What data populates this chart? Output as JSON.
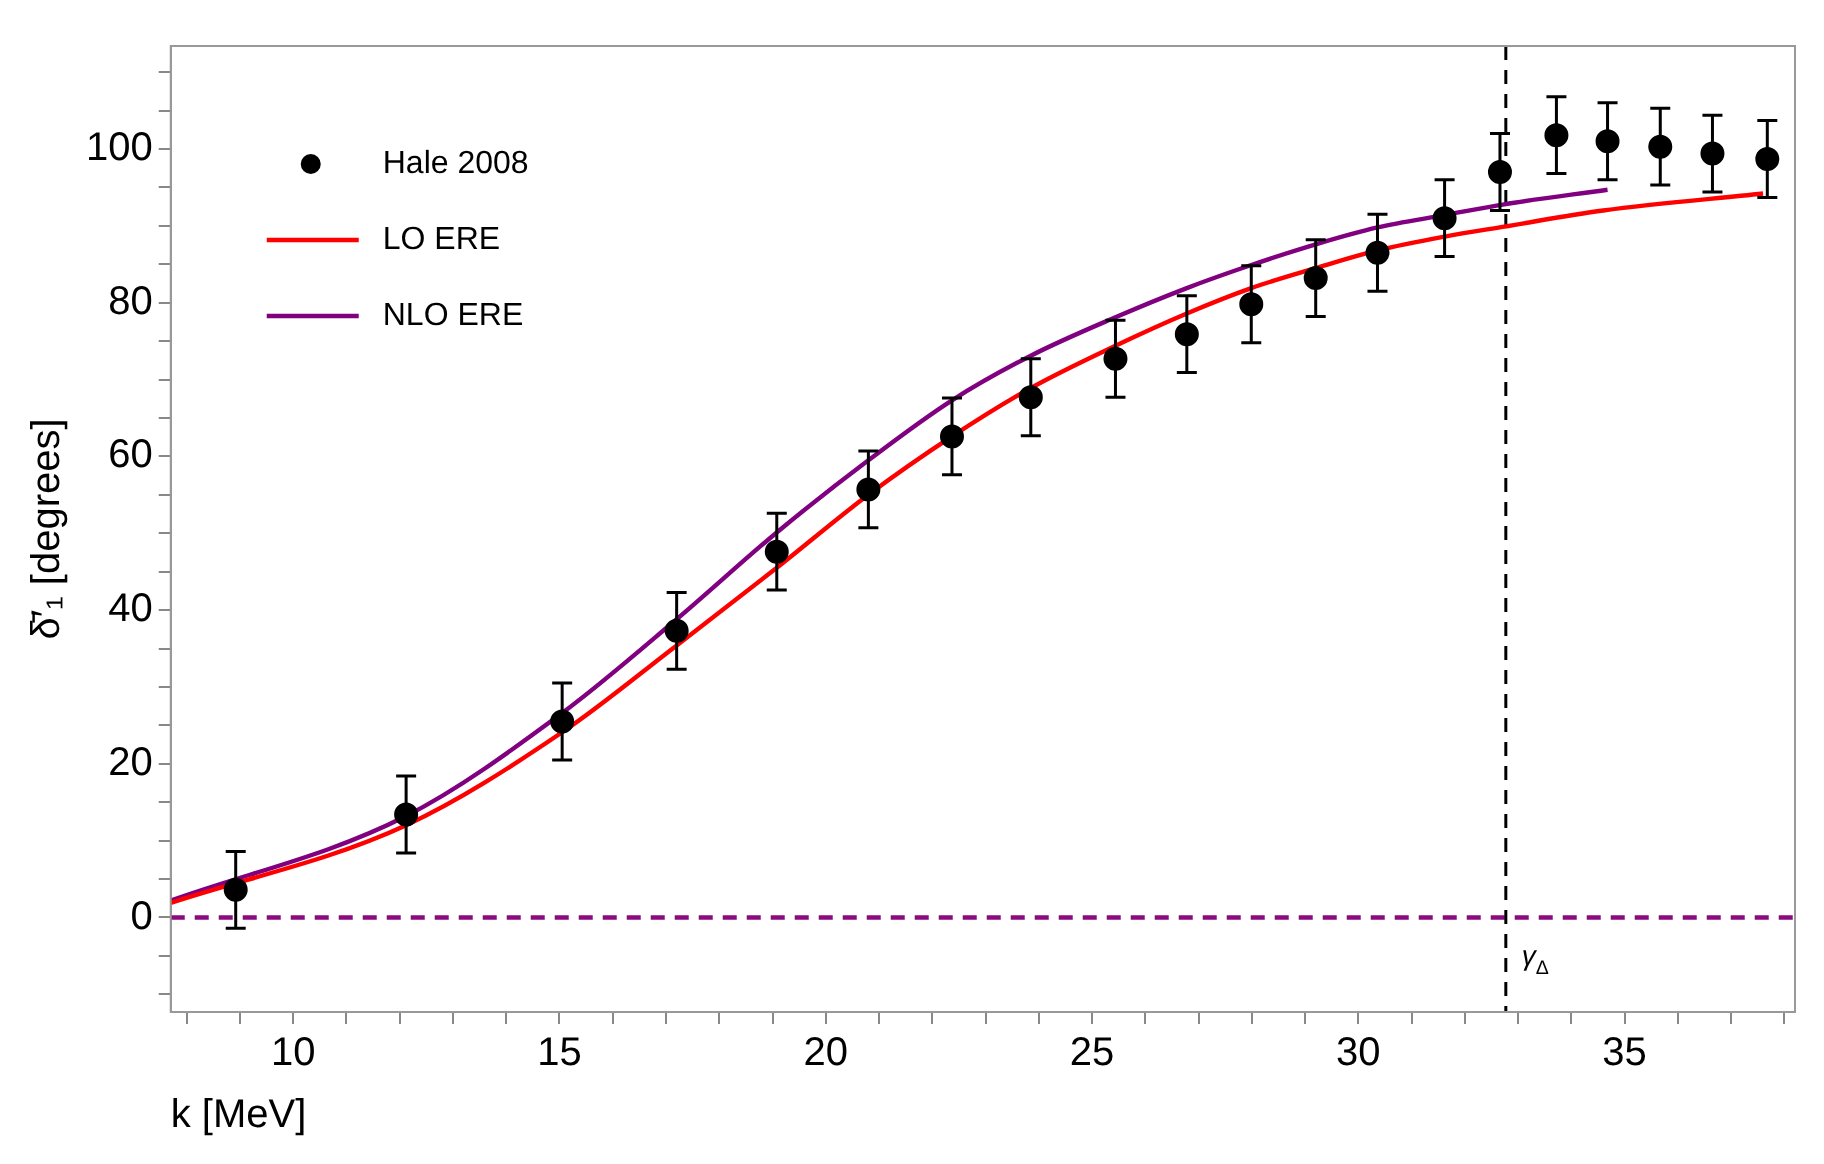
{
  "chart_data": {
    "type": "line",
    "xlabel": "k [MeV]",
    "ylabel": "δ̄′₁ [degrees]",
    "xlim": [
      7.7,
      38.2
    ],
    "ylim": [
      -12.3,
      113.4
    ],
    "xticks": [
      {
        "value": 8,
        "label": null
      },
      {
        "value": 9,
        "label": null
      },
      10,
      {
        "value": 11,
        "label": null
      },
      {
        "value": 12,
        "label": null
      },
      {
        "value": 13,
        "label": null
      },
      {
        "value": 14,
        "label": null
      },
      15,
      {
        "value": 16,
        "label": null
      },
      {
        "value": 17,
        "label": null
      },
      {
        "value": 18,
        "label": null
      },
      {
        "value": 19,
        "label": null
      },
      20,
      {
        "value": 21,
        "label": null
      },
      {
        "value": 22,
        "label": null
      },
      {
        "value": 23,
        "label": null
      },
      {
        "value": 24,
        "label": null
      },
      25,
      {
        "value": 26,
        "label": null
      },
      {
        "value": 27,
        "label": null
      },
      {
        "value": 28,
        "label": null
      },
      {
        "value": 29,
        "label": null
      },
      30,
      {
        "value": 31,
        "label": null
      },
      {
        "value": 32,
        "label": null
      },
      {
        "value": 33,
        "label": null
      },
      {
        "value": 34,
        "label": null
      },
      35,
      {
        "value": 36,
        "label": null
      },
      {
        "value": 37,
        "label": null
      },
      {
        "value": 38,
        "label": null
      }
    ],
    "yticks": [
      {
        "value": -10,
        "label": null
      },
      {
        "value": -5,
        "label": null
      },
      0,
      {
        "value": 5,
        "label": null
      },
      {
        "value": 10,
        "label": null
      },
      {
        "value": 15,
        "label": null
      },
      20,
      {
        "value": 25,
        "label": null
      },
      {
        "value": 30,
        "label": null
      },
      {
        "value": 35,
        "label": null
      },
      40,
      {
        "value": 45,
        "label": null
      },
      {
        "value": 50,
        "label": null
      },
      {
        "value": 55,
        "label": null
      },
      60,
      {
        "value": 65,
        "label": null
      },
      {
        "value": 70,
        "label": null
      },
      {
        "value": 75,
        "label": null
      },
      80,
      {
        "value": 85,
        "label": null
      },
      {
        "value": 90,
        "label": null
      },
      {
        "value": 95,
        "label": null
      },
      100,
      {
        "value": 105,
        "label": null
      },
      {
        "value": 110,
        "label": null
      }
    ],
    "grid": false,
    "legend": "top left",
    "series": [
      {
        "name": "Hale 2008",
        "type": "scatter",
        "marker": "circle",
        "color": "#000000",
        "x": [
          8.92,
          12.12,
          15.05,
          17.2,
          19.08,
          20.8,
          22.37,
          23.85,
          25.44,
          26.78,
          27.99,
          29.2,
          30.36,
          31.62,
          32.66,
          33.72,
          34.68,
          35.67,
          36.65,
          37.68
        ],
        "values": [
          3.6,
          13.4,
          25.5,
          37.3,
          47.6,
          55.7,
          62.6,
          67.7,
          72.7,
          75.9,
          79.8,
          83.2,
          86.5,
          91.0,
          97.0,
          101.8,
          101.0,
          100.3,
          99.4,
          98.7
        ],
        "errors": [
          5,
          5,
          5,
          5,
          5,
          5,
          5,
          5,
          5,
          5,
          5,
          5,
          5,
          5,
          5,
          5,
          5,
          5,
          5,
          5
        ]
      },
      {
        "name": "LO ERE",
        "color": "#ff0000",
        "x": [
          7.7,
          12.12,
          15.05,
          17.2,
          19.08,
          20.8,
          22.37,
          23.85,
          25.44,
          26.78,
          27.99,
          29.2,
          30.36,
          31.62,
          32.74,
          34.6,
          37.6
        ],
        "values": [
          1.9,
          12.0,
          24.1,
          35.4,
          45.5,
          55.0,
          62.6,
          68.9,
          74.4,
          78.6,
          81.9,
          84.5,
          86.8,
          88.6,
          89.9,
          92.0,
          94.2
        ]
      },
      {
        "name": "NLO ERE",
        "color": "#800080",
        "x": [
          7.7,
          12.12,
          15.05,
          17.2,
          19.08,
          20.8,
          22.37,
          23.85,
          25.44,
          26.78,
          27.99,
          29.2,
          30.36,
          31.62,
          32.74,
          34.68
        ],
        "values": [
          2.2,
          13.2,
          26.6,
          38.8,
          50.1,
          59.5,
          67.3,
          73.1,
          78.1,
          81.9,
          84.9,
          87.6,
          89.8,
          91.4,
          92.8,
          94.7
        ]
      }
    ],
    "ref_lines": [
      {
        "axis": "y",
        "value": 0,
        "color": "#8b0a80",
        "line_style": "dashed"
      },
      {
        "axis": "x",
        "value": 32.77,
        "label": "γ$_{Δ}$",
        "color": "#000000",
        "line_style": "dashed"
      }
    ]
  }
}
